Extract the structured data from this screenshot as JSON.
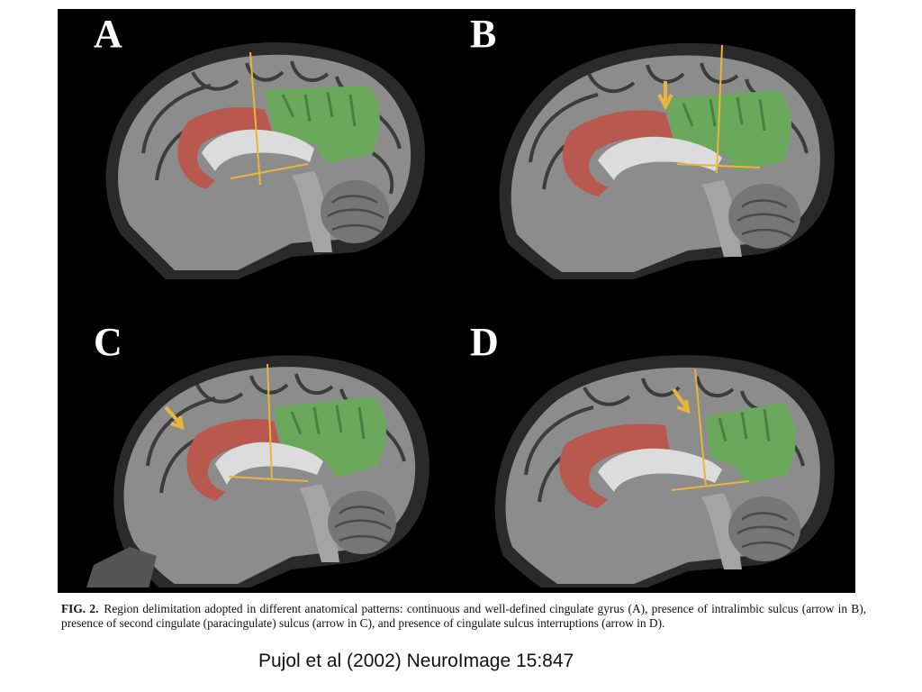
{
  "figure": {
    "panels": [
      {
        "letter": "A",
        "arrow": false
      },
      {
        "letter": "B",
        "arrow": true
      },
      {
        "letter": "C",
        "arrow": true
      },
      {
        "letter": "D",
        "arrow": true
      }
    ],
    "colors": {
      "background": "#000000",
      "anterior_cingulate": "#b8584f",
      "posterior_region": "#6aa85c",
      "delimitation_lines": "#e8b63a",
      "brain_tissue": "#8c8c8c"
    }
  },
  "caption": {
    "label": "FIG. 2.",
    "text": "Region delimitation adopted in different anatomical patterns: continuous and well-defined cingulate gyrus (A), presence of intralimbic sulcus (arrow in B), presence of second cingulate (paracingulate) sulcus (arrow in C), and presence of cingulate sulcus interruptions (arrow in D)."
  },
  "citation": "Pujol et al (2002) NeuroImage 15:847"
}
